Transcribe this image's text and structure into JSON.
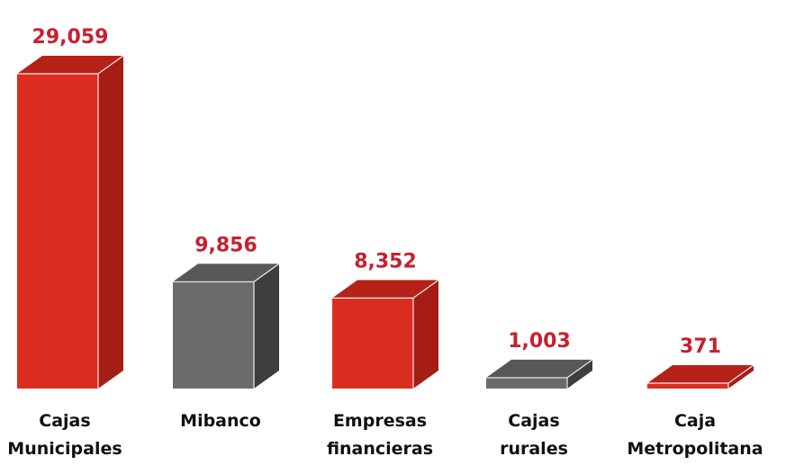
{
  "chart_data": {
    "type": "bar",
    "title": "",
    "xlabel": "",
    "ylabel": "",
    "ylim": [
      0,
      29059
    ],
    "grid": false,
    "legend": "none",
    "style": "3d",
    "categories": [
      [
        "Cajas",
        "Municipales"
      ],
      [
        "Mibanco"
      ],
      [
        "Empresas",
        "financieras"
      ],
      [
        "Cajas",
        "rurales"
      ],
      [
        "Caja",
        "Metropolitana"
      ]
    ],
    "values": [
      29059,
      9856,
      8352,
      1003,
      371
    ],
    "value_labels": [
      "29,059",
      "9,856",
      "8,352",
      "1,003",
      "371"
    ],
    "bar_colors": [
      "red",
      "gray",
      "red",
      "gray",
      "red"
    ]
  },
  "colors": {
    "red_front": "#DC2E20",
    "red_top": "#B72218",
    "red_side": "#A51D15",
    "gray_front": "#6B6B6B",
    "gray_top": "#585858",
    "gray_side": "#3E3E3E",
    "value_label": "#C8202F",
    "category_label": "#111111"
  }
}
